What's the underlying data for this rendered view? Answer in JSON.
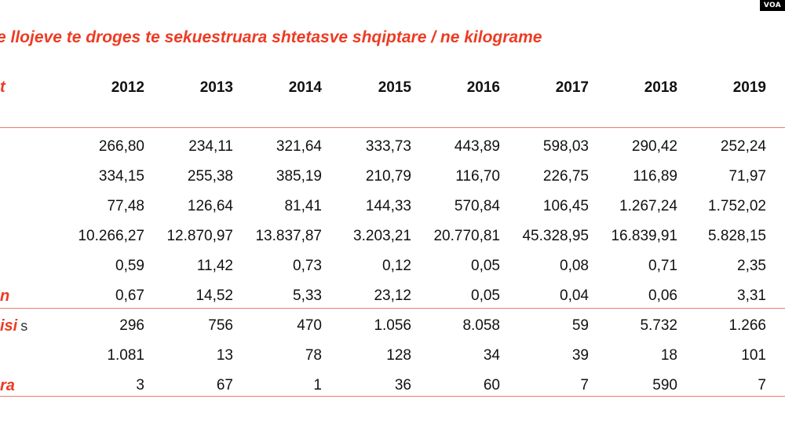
{
  "badge": "VOA",
  "title": "e llojeve te droges te sekuestruara shtetasve shqiptare / ne kilograme",
  "table": {
    "header_label": "t",
    "years": [
      "2012",
      "2013",
      "2014",
      "2015",
      "2016",
      "2017",
      "2018",
      "2019"
    ],
    "rows": [
      {
        "label": "",
        "trail": "",
        "values": [
          "266,80",
          "234,11",
          "321,64",
          "333,73",
          "443,89",
          "598,03",
          "290,42",
          "252,24"
        ]
      },
      {
        "label": "",
        "trail": "",
        "values": [
          "334,15",
          "255,38",
          "385,19",
          "210,79",
          "116,70",
          "226,75",
          "116,89",
          "71,97"
        ]
      },
      {
        "label": "",
        "trail": "",
        "values": [
          "77,48",
          "126,64",
          "81,41",
          "144,33",
          "570,84",
          "106,45",
          "1.267,24",
          "1.752,02"
        ]
      },
      {
        "label": "",
        "trail": "",
        "values": [
          "10.266,27",
          "12.870,97",
          "13.837,87",
          "3.203,21",
          "20.770,81",
          "45.328,95",
          "16.839,91",
          "5.828,15"
        ]
      },
      {
        "label": "",
        "trail": "",
        "values": [
          "0,59",
          "11,42",
          "0,73",
          "0,12",
          "0,05",
          "0,08",
          "0,71",
          "2,35"
        ]
      },
      {
        "label": "n",
        "trail": "",
        "values": [
          "0,67",
          "14,52",
          "5,33",
          "23,12",
          "0,05",
          "0,04",
          "0,06",
          "3,31"
        ]
      },
      {
        "label": "isi",
        "trail": "s",
        "values": [
          "296",
          "756",
          "470",
          "1.056",
          "8.058",
          "59",
          "5.732",
          "1.266"
        ]
      },
      {
        "label": "",
        "trail": "",
        "values": [
          "1.081",
          "13",
          "78",
          "128",
          "34",
          "39",
          "18",
          "101"
        ]
      },
      {
        "label": "ra",
        "trail": "",
        "values": [
          "3",
          "67",
          "1",
          "36",
          "60",
          "7",
          "590",
          "7"
        ]
      }
    ]
  }
}
